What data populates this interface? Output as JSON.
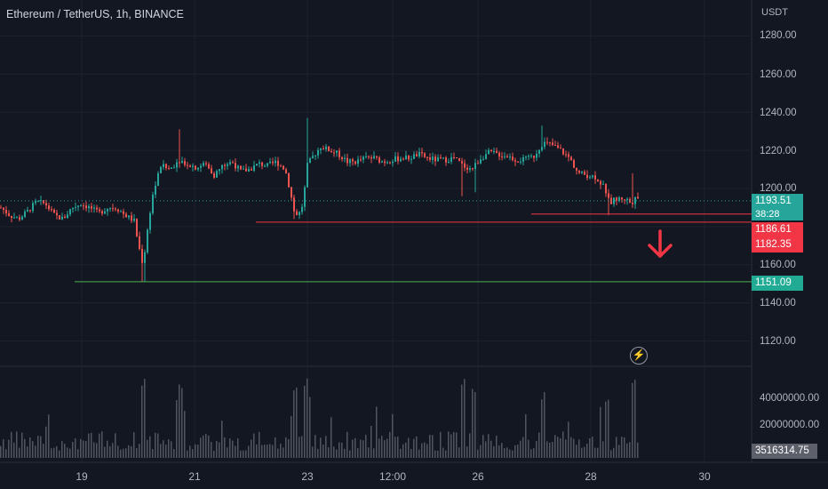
{
  "symbol": {
    "title": "Ethereum / TetherUS, 1h, BINANCE"
  },
  "price_axis": {
    "unit": "USDT",
    "ticks": [
      "1280.00",
      "1260.00",
      "1240.00",
      "1220.00",
      "1200.00",
      "1160.00",
      "1140.00",
      "1120.00"
    ]
  },
  "volume_axis": {
    "ticks": [
      "40000000.00",
      "20000000.00"
    ]
  },
  "time_axis": {
    "ticks": [
      "19",
      "21",
      "23",
      "12:00",
      "26",
      "28",
      "30"
    ]
  },
  "labels": {
    "current_price": "1193.51",
    "countdown": "38:28",
    "resistance_1": "1186.61",
    "resistance_2": "1182.35",
    "support": "1151.09",
    "volume": "3516314.75"
  },
  "colors": {
    "background": "#131722",
    "up": "#26a69a",
    "down": "#ef5350",
    "resistance_line": "#f23645",
    "support_line": "#4caf50",
    "volume_bar": "#5d606b"
  },
  "icons": {
    "flash": "lightning-bolt-icon",
    "arrow": "arrow-down-icon"
  },
  "chart_data": {
    "type": "candlestick",
    "title": "Ethereum / TetherUS, 1h, BINANCE",
    "ylabel": "USDT",
    "ylim": [
      1110,
      1290
    ],
    "x_ticks": [
      "19",
      "21",
      "23",
      "12:00",
      "26",
      "28",
      "30"
    ],
    "horizontal_levels": [
      {
        "value": 1186.61,
        "color": "#f23645"
      },
      {
        "value": 1182.35,
        "color": "#f23645"
      },
      {
        "value": 1151.09,
        "color": "#4caf50"
      }
    ],
    "last_price": 1193.51,
    "last_volume": 3516314.75,
    "price_path": [
      [
        0,
        1190
      ],
      [
        10,
        1186
      ],
      [
        20,
        1184
      ],
      [
        30,
        1188
      ],
      [
        40,
        1193
      ],
      [
        50,
        1192
      ],
      [
        60,
        1186
      ],
      [
        70,
        1184
      ],
      [
        80,
        1190
      ],
      [
        90,
        1192
      ],
      [
        100,
        1190
      ],
      [
        110,
        1187
      ],
      [
        120,
        1190
      ],
      [
        130,
        1190
      ],
      [
        140,
        1186
      ],
      [
        150,
        1183
      ],
      [
        155,
        1170
      ],
      [
        160,
        1160
      ],
      [
        165,
        1178
      ],
      [
        170,
        1195
      ],
      [
        180,
        1212
      ],
      [
        190,
        1210
      ],
      [
        200,
        1215
      ],
      [
        210,
        1213
      ],
      [
        220,
        1211
      ],
      [
        230,
        1213
      ],
      [
        240,
        1207
      ],
      [
        250,
        1212
      ],
      [
        260,
        1214
      ],
      [
        270,
        1209
      ],
      [
        280,
        1210
      ],
      [
        290,
        1213
      ],
      [
        300,
        1212
      ],
      [
        310,
        1214
      ],
      [
        320,
        1210
      ],
      [
        325,
        1200
      ],
      [
        330,
        1188
      ],
      [
        335,
        1186
      ],
      [
        340,
        1192
      ],
      [
        345,
        1212
      ],
      [
        350,
        1216
      ],
      [
        360,
        1222
      ],
      [
        370,
        1220
      ],
      [
        380,
        1218
      ],
      [
        390,
        1214
      ],
      [
        400,
        1214
      ],
      [
        410,
        1216
      ],
      [
        420,
        1216
      ],
      [
        430,
        1214
      ],
      [
        440,
        1215
      ],
      [
        450,
        1216
      ],
      [
        460,
        1216
      ],
      [
        470,
        1218
      ],
      [
        480,
        1216
      ],
      [
        490,
        1215
      ],
      [
        500,
        1215
      ],
      [
        510,
        1216
      ],
      [
        520,
        1212
      ],
      [
        530,
        1210
      ],
      [
        540,
        1216
      ],
      [
        550,
        1219
      ],
      [
        560,
        1218
      ],
      [
        570,
        1217
      ],
      [
        580,
        1215
      ],
      [
        590,
        1215
      ],
      [
        600,
        1217
      ],
      [
        610,
        1224
      ],
      [
        620,
        1223
      ],
      [
        630,
        1220
      ],
      [
        640,
        1216
      ],
      [
        650,
        1208
      ],
      [
        660,
        1207
      ],
      [
        670,
        1206
      ],
      [
        680,
        1200
      ],
      [
        685,
        1192
      ],
      [
        690,
        1194
      ],
      [
        700,
        1195
      ],
      [
        705,
        1194
      ],
      [
        710,
        1192
      ],
      [
        715,
        1198
      ],
      [
        718,
        1193.51
      ]
    ]
  }
}
